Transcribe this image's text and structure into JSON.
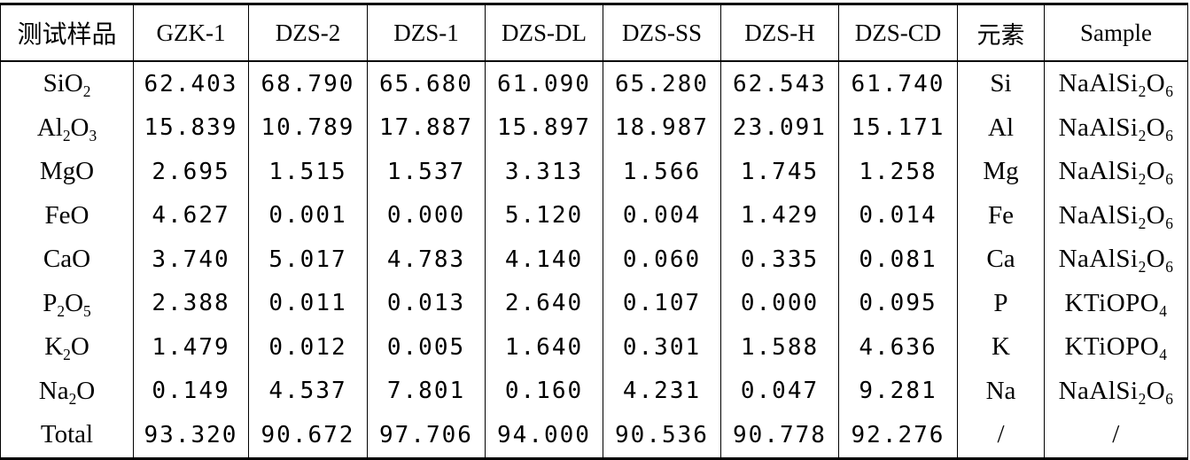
{
  "table": {
    "headers": [
      "测试样品",
      "GZK-1",
      "DZS-2",
      "DZS-1",
      "DZS-DL",
      "DZS-SS",
      "DZS-H",
      "DZS-CD",
      "元素",
      "Sample"
    ],
    "rows": [
      {
        "label": [
          [
            "Si",
            ""
          ],
          [
            "O",
            "2"
          ]
        ],
        "values": [
          "62.403",
          "68.790",
          "65.680",
          "61.090",
          "65.280",
          "62.543",
          "61.740"
        ],
        "element": "Si",
        "sample": [
          [
            "NaAlSi",
            "2"
          ],
          [
            "O",
            "6"
          ]
        ]
      },
      {
        "label": [
          [
            "Al",
            "2"
          ],
          [
            "O",
            "3"
          ]
        ],
        "values": [
          "15.839",
          "10.789",
          "17.887",
          "15.897",
          "18.987",
          "23.091",
          "15.171"
        ],
        "element": "Al",
        "sample": [
          [
            "NaAlSi",
            "2"
          ],
          [
            "O",
            "6"
          ]
        ]
      },
      {
        "label": [
          [
            "MgO",
            ""
          ]
        ],
        "values": [
          "2.695",
          "1.515",
          "1.537",
          "3.313",
          "1.566",
          "1.745",
          "1.258"
        ],
        "element": "Mg",
        "sample": [
          [
            "NaAlSi",
            "2"
          ],
          [
            "O",
            "6"
          ]
        ]
      },
      {
        "label": [
          [
            "FeO",
            ""
          ]
        ],
        "values": [
          "4.627",
          "0.001",
          "0.000",
          "5.120",
          "0.004",
          "1.429",
          "0.014"
        ],
        "element": "Fe",
        "sample": [
          [
            "NaAlSi",
            "2"
          ],
          [
            "O",
            "6"
          ]
        ]
      },
      {
        "label": [
          [
            "CaO",
            ""
          ]
        ],
        "values": [
          "3.740",
          "5.017",
          "4.783",
          "4.140",
          "0.060",
          "0.335",
          "0.081"
        ],
        "element": "Ca",
        "sample": [
          [
            "NaAlSi",
            "2"
          ],
          [
            "O",
            "6"
          ]
        ]
      },
      {
        "label": [
          [
            "P",
            "2"
          ],
          [
            "O",
            "5"
          ]
        ],
        "values": [
          "2.388",
          "0.011",
          "0.013",
          "2.640",
          "0.107",
          "0.000",
          "0.095"
        ],
        "element": "P",
        "sample": [
          [
            "KTiOPO",
            "4"
          ]
        ]
      },
      {
        "label": [
          [
            "K",
            "2"
          ],
          [
            "O",
            ""
          ]
        ],
        "values": [
          "1.479",
          "0.012",
          "0.005",
          "1.640",
          "0.301",
          "1.588",
          "4.636"
        ],
        "element": "K",
        "sample": [
          [
            "KTiOPO",
            "4"
          ]
        ]
      },
      {
        "label": [
          [
            "Na",
            "2"
          ],
          [
            "O",
            ""
          ]
        ],
        "values": [
          "0.149",
          "4.537",
          "7.801",
          "0.160",
          "4.231",
          "0.047",
          "9.281"
        ],
        "element": "Na",
        "sample": [
          [
            "NaAlSi",
            "2"
          ],
          [
            "O",
            "6"
          ]
        ]
      },
      {
        "label": [
          [
            "Total",
            ""
          ]
        ],
        "values": [
          "93.320",
          "90.672",
          "97.706",
          "94.000",
          "90.536",
          "90.778",
          "92.276"
        ],
        "element": "/",
        "sample": [
          [
            "/",
            ""
          ]
        ]
      }
    ]
  }
}
